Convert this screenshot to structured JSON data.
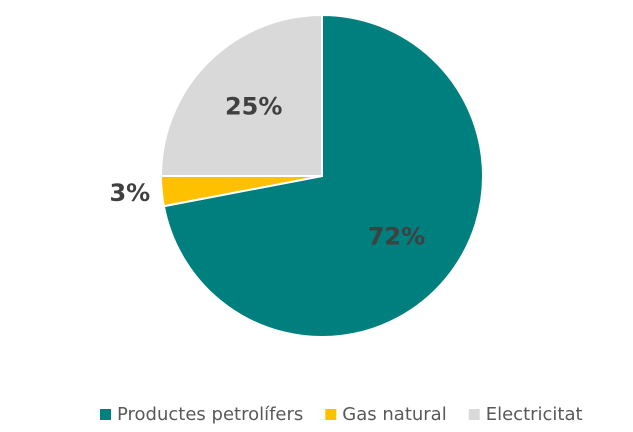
{
  "chart_data": {
    "type": "pie",
    "categories": [
      "Productes petrolífers",
      "Gas natural",
      "Electricitat"
    ],
    "values": [
      72,
      3,
      25
    ],
    "value_labels": [
      "72%",
      "3%",
      "25%"
    ],
    "colors": [
      "#007f7f",
      "#ffc000",
      "#d9d9d9"
    ],
    "legend": "bottom"
  }
}
